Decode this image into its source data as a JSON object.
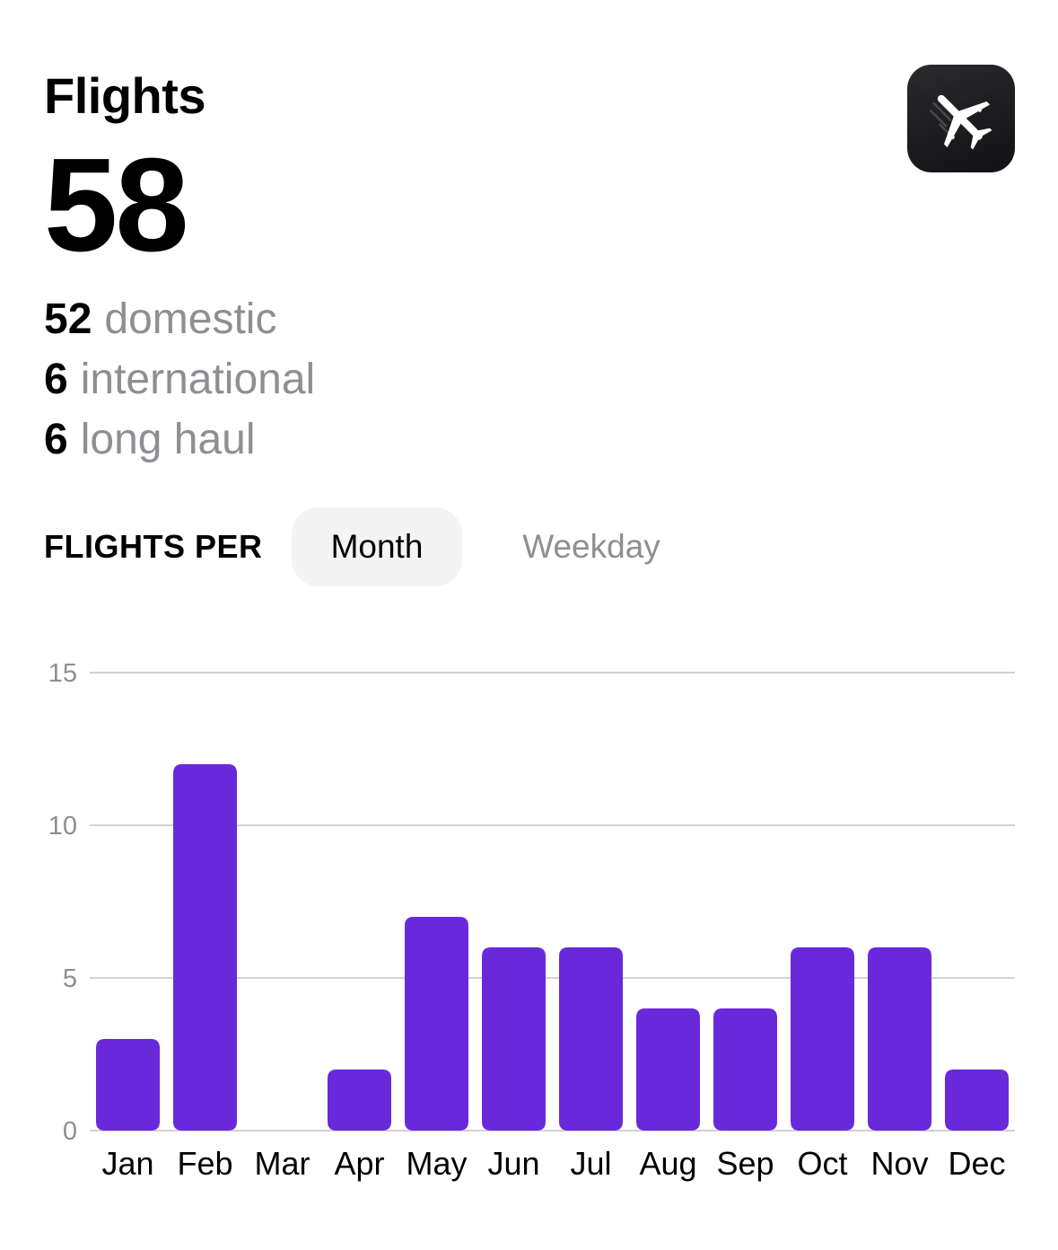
{
  "header": {
    "title": "Flights",
    "total": "58",
    "app_icon": "airplane-icon"
  },
  "breakdown": [
    {
      "count": "52",
      "label": "domestic"
    },
    {
      "count": "6",
      "label": "international"
    },
    {
      "count": "6",
      "label": "long haul"
    }
  ],
  "segment": {
    "label": "FLIGHTS PER",
    "options": [
      "Month",
      "Weekday"
    ],
    "selected": "Month"
  },
  "colors": {
    "bar": "#6929db",
    "grid": "#d1d1d6",
    "muted": "#8e8e93"
  },
  "chart_data": {
    "type": "bar",
    "categories": [
      "Jan",
      "Feb",
      "Mar",
      "Apr",
      "May",
      "Jun",
      "Jul",
      "Aug",
      "Sep",
      "Oct",
      "Nov",
      "Dec"
    ],
    "values": [
      3,
      12,
      0,
      2,
      7,
      6,
      6,
      4,
      4,
      6,
      6,
      2
    ],
    "ylim": [
      0,
      15
    ],
    "yticks": [
      0,
      5,
      10,
      15
    ],
    "grid": true,
    "legend": "none"
  }
}
